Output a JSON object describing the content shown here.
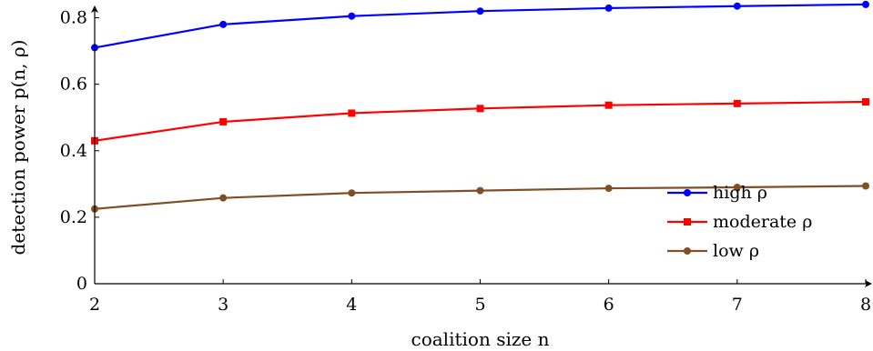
{
  "chart_data": {
    "type": "line",
    "title": "",
    "xlabel": "coalition size n",
    "ylabel": "detection power p(n, ρ)",
    "x": [
      2,
      3,
      4,
      5,
      6,
      7,
      8
    ],
    "xlim": [
      2,
      8
    ],
    "ylim": [
      0,
      0.9
    ],
    "xticks": [
      "2",
      "3",
      "4",
      "5",
      "6",
      "7",
      "8"
    ],
    "yticks": [
      "0",
      "0.2",
      "0.4",
      "0.6",
      "0.8"
    ],
    "grid": false,
    "legend_position": "bottom-right",
    "series": [
      {
        "name": "high ρ",
        "color": "#0000ff",
        "marker": "circle",
        "values": [
          0.71,
          0.78,
          0.805,
          0.82,
          0.829,
          0.835,
          0.84
        ]
      },
      {
        "name": "moderate ρ",
        "color": "#ff0000",
        "marker": "square",
        "values": [
          0.43,
          0.487,
          0.513,
          0.527,
          0.537,
          0.542,
          0.547
        ]
      },
      {
        "name": "low ρ",
        "color": "#7f4f25",
        "marker": "circle",
        "values": [
          0.225,
          0.258,
          0.273,
          0.28,
          0.287,
          0.29,
          0.294
        ]
      }
    ]
  }
}
